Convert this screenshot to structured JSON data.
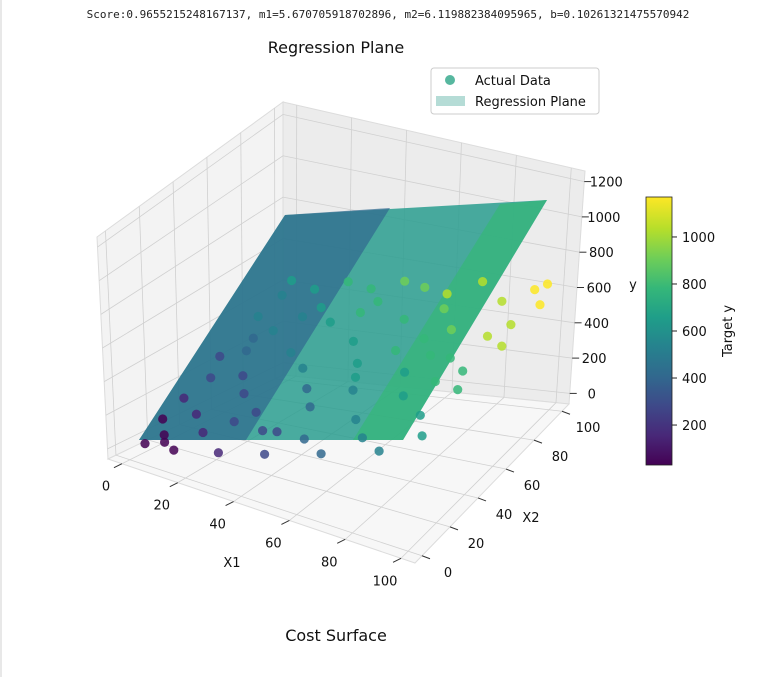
{
  "header": {
    "score_line": "Score:0.9655215248167137, m1=5.670705918702896, m2=6.119882384095965, b=0.10261321475570942"
  },
  "footer": {
    "caption": "Cost Surface"
  },
  "chart_data": {
    "type": "scatter3d",
    "title": "Regression Plane",
    "xlabel": "X1",
    "ylabel": "X2",
    "zlabel": "y",
    "xlim": [
      -5,
      105
    ],
    "ylim": [
      -5,
      105
    ],
    "zlim": [
      -60,
      1260
    ],
    "x_ticks": [
      0,
      20,
      40,
      60,
      80,
      100
    ],
    "y_ticks": [
      0,
      20,
      40,
      60,
      80,
      100
    ],
    "z_ticks": [
      0,
      200,
      400,
      600,
      800,
      1000,
      1200
    ],
    "grid": true,
    "legend": {
      "position": "top-right",
      "entries": [
        {
          "label": "Actual Data",
          "type": "marker",
          "color": "#3aaa8e"
        },
        {
          "label": "Regression Plane",
          "type": "patch",
          "color": "#b5dcd6"
        }
      ]
    },
    "colorbar": {
      "label": "Target y",
      "colormap": "viridis",
      "range": [
        30,
        1170
      ],
      "ticks": [
        200,
        400,
        600,
        800,
        1000
      ]
    },
    "plane": {
      "m1": 5.670705918702896,
      "m2": 6.119882384095965,
      "b": 0.10261321475570942
    },
    "colors": [
      "#440154",
      "#482878",
      "#3e4989",
      "#31688e",
      "#26828e",
      "#1f9e89",
      "#35b779",
      "#6ece58",
      "#b5de2b",
      "#fde725"
    ],
    "points": [
      [
        4,
        3,
        55
      ],
      [
        7,
        10,
        95
      ],
      [
        2,
        18,
        128
      ],
      [
        10,
        5,
        90
      ],
      [
        3,
        30,
        210
      ],
      [
        6,
        42,
        300
      ],
      [
        2,
        55,
        350
      ],
      [
        8,
        66,
        450
      ],
      [
        3,
        78,
        500
      ],
      [
        5,
        90,
        590
      ],
      [
        4,
        98,
        640
      ],
      [
        12,
        22,
        200
      ],
      [
        15,
        2,
        85
      ],
      [
        16,
        45,
        360
      ],
      [
        13,
        70,
        510
      ],
      [
        14,
        95,
        660
      ],
      [
        20,
        12,
        180
      ],
      [
        22,
        35,
        330
      ],
      [
        25,
        60,
        490
      ],
      [
        22,
        85,
        640
      ],
      [
        24,
        99,
        750
      ],
      [
        30,
        4,
        150
      ],
      [
        32,
        25,
        320
      ],
      [
        35,
        50,
        500
      ],
      [
        31,
        75,
        650
      ],
      [
        34,
        96,
        780
      ],
      [
        40,
        15,
        300
      ],
      [
        42,
        40,
        460
      ],
      [
        45,
        65,
        660
      ],
      [
        41,
        88,
        780
      ],
      [
        44,
        100,
        870
      ],
      [
        48,
        2,
        260
      ],
      [
        50,
        28,
        450
      ],
      [
        52,
        55,
        610
      ],
      [
        55,
        80,
        790
      ],
      [
        53,
        97,
        900
      ],
      [
        58,
        10,
        380
      ],
      [
        60,
        38,
        570
      ],
      [
        62,
        62,
        720
      ],
      [
        65,
        88,
        880
      ],
      [
        68,
        3,
        380
      ],
      [
        70,
        22,
        520
      ],
      [
        72,
        50,
        700
      ],
      [
        75,
        75,
        870
      ],
      [
        73,
        99,
        1050
      ],
      [
        78,
        12,
        500
      ],
      [
        80,
        35,
        670
      ],
      [
        83,
        60,
        810
      ],
      [
        85,
        90,
        1040
      ],
      [
        88,
        5,
        510
      ],
      [
        90,
        28,
        640
      ],
      [
        92,
        52,
        820
      ],
      [
        95,
        78,
        1010
      ],
      [
        93,
        97,
        1130
      ],
      [
        98,
        15,
        620
      ],
      [
        97,
        40,
        790
      ],
      [
        99,
        65,
        960
      ],
      [
        100,
        88,
        1120
      ],
      [
        96,
        100,
        1170
      ],
      [
        86,
        45,
        750
      ],
      [
        64,
        92,
        950
      ],
      [
        18,
        80,
        580
      ],
      [
        28,
        18,
        270
      ],
      [
        57,
        45,
        600
      ],
      [
        77,
        58,
        800
      ],
      [
        38,
        82,
        720
      ],
      [
        10,
        58,
        420
      ],
      [
        47,
        12,
        350
      ],
      [
        69,
        68,
        810
      ],
      [
        91,
        70,
        950
      ]
    ]
  }
}
